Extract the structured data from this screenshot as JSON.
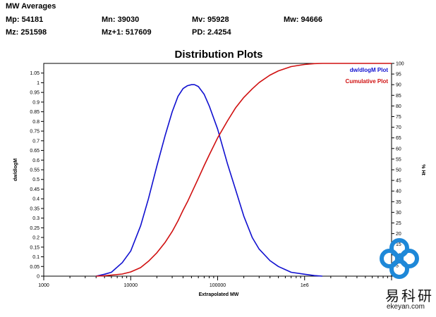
{
  "mw_averages": {
    "title": "MW Averages",
    "items": [
      {
        "label": "Mp: 54181"
      },
      {
        "label": "Mn: 39030"
      },
      {
        "label": "Mv: 95928"
      },
      {
        "label": "Mw: 94666"
      },
      {
        "label": "Mz: 251598"
      },
      {
        "label": "Mz+1: 517609"
      },
      {
        "label": "PD: 2.4254"
      }
    ]
  },
  "watermark": {
    "text": "易科研",
    "url": "ekeyan.com"
  },
  "chart_data": {
    "type": "line",
    "title": "Distribution Plots",
    "xlabel": "Extrapolated MW",
    "ylabel_left": "dw/dlogM",
    "ylabel_right": "% Ht",
    "x_scale": "log",
    "xlim": [
      1000,
      10000000
    ],
    "x_ticks": [
      1000,
      10000,
      100000,
      1000000
    ],
    "x_tick_labels": [
      "1000",
      "10000",
      "100000",
      "1e6"
    ],
    "ylim_left": [
      0,
      1.1
    ],
    "y_ticks_left": [
      "0",
      "0.05",
      "0.1",
      "0.15",
      "0.2",
      "0.25",
      "0.3",
      "0.35",
      "0.4",
      "0.45",
      "0.5",
      "0.55",
      "0.6",
      "0.65",
      "0.7",
      "0.75",
      "0.8",
      "0.85",
      "0.9",
      "0.95",
      "1",
      "1.05"
    ],
    "ylim_right": [
      0,
      100
    ],
    "y_ticks_right": [
      "0",
      "5",
      "10",
      "15",
      "20",
      "25",
      "30",
      "35",
      "40",
      "45",
      "50",
      "55",
      "60",
      "65",
      "70",
      "75",
      "80",
      "85",
      "90",
      "95",
      "100"
    ],
    "grid": false,
    "legend_position": "top-right",
    "series": [
      {
        "name": "dw/dlogM Plot",
        "color": "#1010d0",
        "axis": "left",
        "x": [
          4000,
          5000,
          6000,
          8000,
          10000,
          13000,
          16000,
          20000,
          25000,
          30000,
          35000,
          40000,
          45000,
          50000,
          54181,
          60000,
          70000,
          80000,
          100000,
          130000,
          160000,
          200000,
          250000,
          300000,
          400000,
          500000,
          700000,
          1000000,
          1300000,
          1600000
        ],
        "y": [
          0.0,
          0.01,
          0.02,
          0.07,
          0.13,
          0.26,
          0.4,
          0.57,
          0.73,
          0.85,
          0.93,
          0.97,
          0.985,
          0.99,
          0.99,
          0.98,
          0.94,
          0.88,
          0.76,
          0.58,
          0.45,
          0.31,
          0.2,
          0.14,
          0.08,
          0.05,
          0.02,
          0.01,
          0.003,
          0.0
        ]
      },
      {
        "name": "Cumulative Plot",
        "color": "#d01010",
        "axis": "right",
        "x": [
          4000,
          5000,
          6000,
          8000,
          10000,
          13000,
          16000,
          20000,
          25000,
          30000,
          35000,
          40000,
          45000,
          50000,
          60000,
          70000,
          80000,
          100000,
          130000,
          160000,
          200000,
          250000,
          300000,
          400000,
          500000,
          700000,
          1000000,
          1300000,
          1600000
        ],
        "y": [
          0,
          0.2,
          0.5,
          1.0,
          2,
          4,
          7,
          11,
          16,
          21,
          26,
          31,
          35,
          39,
          46,
          52,
          57,
          65,
          73,
          79,
          84,
          88,
          91,
          94.5,
          96.5,
          98.5,
          99.5,
          99.9,
          100
        ]
      }
    ]
  }
}
